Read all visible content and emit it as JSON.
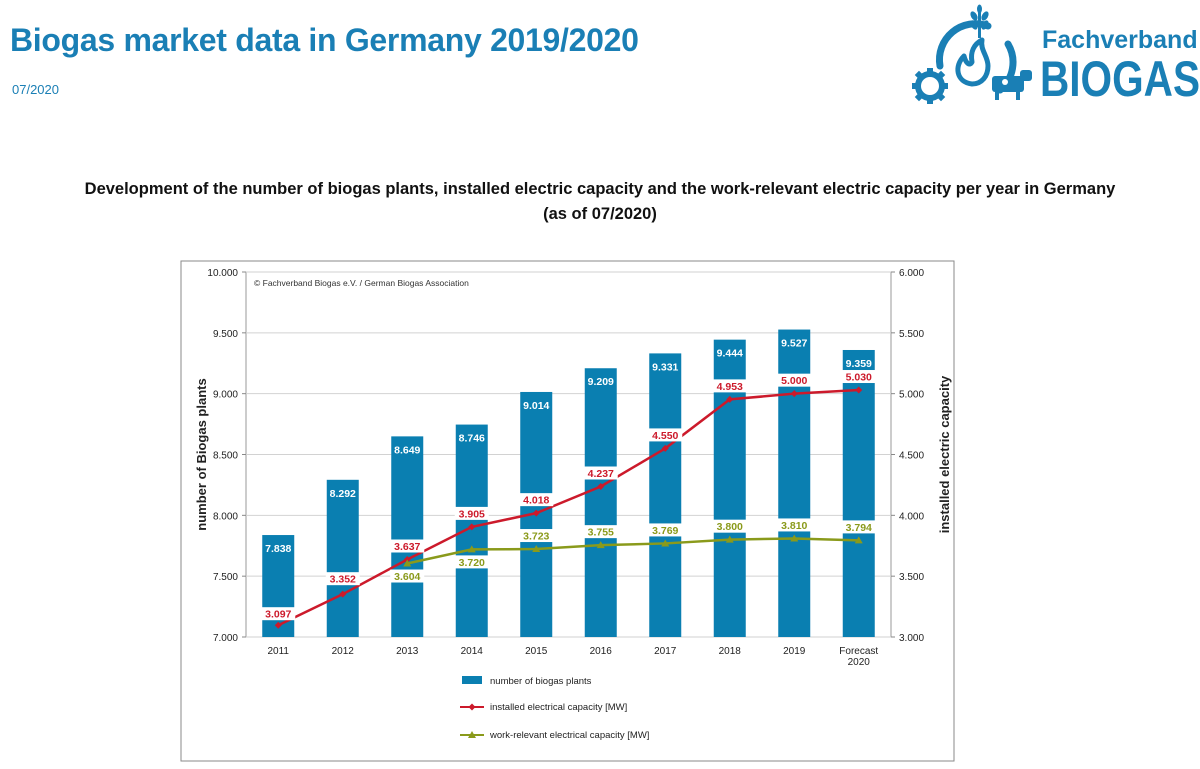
{
  "header": {
    "title": "Biogas market data in Germany 2019/2020",
    "date": "07/2020"
  },
  "logo": {
    "line1": "Fachverband",
    "line2": "BIOGAS",
    "icons": [
      "flame-icon",
      "wheat-icon",
      "gear-icon",
      "cow-icon",
      "pipe-cycle-icon"
    ]
  },
  "colors": {
    "brand": "#1a7fb5",
    "bars": "#0a7fb1",
    "installed_line": "#cc1a2b",
    "work_relevant_line": "#8a9a1b"
  },
  "chart_data": {
    "type": "bar",
    "title_line1": "Development of the number of biogas plants, installed electric capacity and the work-relevant electric capacity per year in Germany",
    "title_line2": "(as of 07/2020)",
    "copyright": "© Fachverband Biogas e.V. / German Biogas Association",
    "categories": [
      "2011",
      "2012",
      "2013",
      "2014",
      "2015",
      "2016",
      "2017",
      "2018",
      "2019",
      "Forecast\n2020"
    ],
    "ylabel_left": "number of Biogas plants",
    "ylabel_right": "installed electric capacity",
    "ylim_left": [
      7000,
      10000
    ],
    "ylim_right": [
      3000,
      6000
    ],
    "yticks_left": [
      "7.000",
      "7.500",
      "8.000",
      "8.500",
      "9.000",
      "9.500",
      "10.000"
    ],
    "yticks_right": [
      "3.000",
      "3.500",
      "4.000",
      "4.500",
      "5.000",
      "5.500",
      "6.000"
    ],
    "grid": true,
    "legend_position": "bottom",
    "series": [
      {
        "name": "number of biogas plants",
        "type": "bar",
        "axis": "left",
        "values": [
          7838,
          8292,
          8649,
          8746,
          9014,
          9209,
          9331,
          9444,
          9527,
          9359
        ],
        "labels": [
          "7.838",
          "8.292",
          "8.649",
          "8.746",
          "9.014",
          "9.209",
          "9.331",
          "9.444",
          "9.527",
          "9.359"
        ]
      },
      {
        "name": "installed electrical capacity [MW]",
        "type": "line",
        "axis": "right",
        "values": [
          3097,
          3352,
          3637,
          3905,
          4018,
          4237,
          4550,
          4953,
          5000,
          5030
        ],
        "labels": [
          "3.097",
          "3.352",
          "3.637",
          "3.905",
          "4.018",
          "4.237",
          "4.550",
          "4.953",
          "5.000",
          "5.030"
        ]
      },
      {
        "name": "work-relevant electrical capacity [MW]",
        "type": "line",
        "axis": "right",
        "values": [
          null,
          null,
          3604,
          3720,
          3723,
          3755,
          3769,
          3800,
          3810,
          3794
        ],
        "labels": [
          null,
          null,
          "3.604",
          "3.720",
          "3.723",
          "3.755",
          "3.769",
          "3.800",
          "3.810",
          "3.794"
        ]
      }
    ]
  }
}
